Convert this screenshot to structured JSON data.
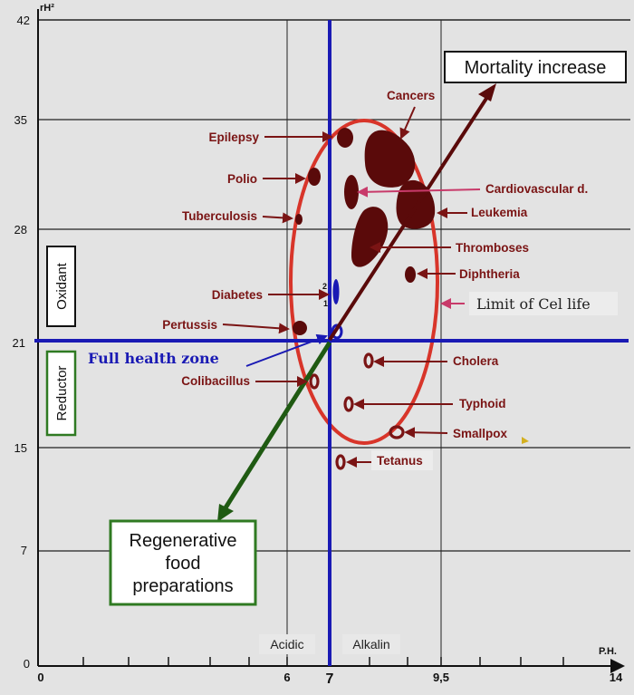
{
  "y_axis": {
    "label": "rH²",
    "ticks": [
      {
        "value": 0,
        "label": "0"
      },
      {
        "value": 7,
        "label": "7"
      },
      {
        "value": 15,
        "label": "15"
      },
      {
        "value": 21,
        "label": "21"
      },
      {
        "value": 28,
        "label": "28"
      },
      {
        "value": 35,
        "label": "35"
      },
      {
        "value": 42,
        "label": "42"
      }
    ]
  },
  "x_axis": {
    "label": "P.H.",
    "ticks": [
      {
        "value": 0,
        "label": "0"
      },
      {
        "value": 6,
        "label": "6"
      },
      {
        "value": 7,
        "label": "7"
      },
      {
        "value": 9.5,
        "label": "9,5"
      },
      {
        "value": 14,
        "label": "14"
      }
    ]
  },
  "regions": {
    "acidic": "Acidic",
    "alkalin": "Alkalin",
    "oxidant": "Oxidant",
    "reductor": "Reductor"
  },
  "callouts": {
    "mortality": "Mortality increase",
    "regenerative_line1": "Regenerative",
    "regenerative_line2": "food",
    "regenerative_line3": "preparations",
    "full_health": "Full health zone",
    "limit": "Limit of Cel life"
  },
  "diseases_left": {
    "epilepsy": "Epilepsy",
    "polio": "Polio",
    "tuberculosis": "Tuberculosis",
    "diabetes": "Diabetes",
    "pertussis": "Pertussis",
    "colibacillus": "Colibacillus"
  },
  "diseases_right": {
    "cancers": "Cancers",
    "cardiovascular": "Cardiovascular d.",
    "leukemia": "Leukemia",
    "thromboses": "Thromboses",
    "diphtheria": "Diphtheria",
    "cholera": "Cholera",
    "typhoid": "Typhoid",
    "smallpox": "Smallpox",
    "tetanus": "Tetanus"
  },
  "diabetes_markers": {
    "upper": "2",
    "lower": "1"
  },
  "colors": {
    "disease_text": "#7a1414",
    "blob": "#5a0a0a",
    "ellipse": "#d8352a",
    "blue": "#1a1ab4",
    "mortality_arrow": "#5a0a0a",
    "regen_arrow": "#1f5a12",
    "regen_border": "#2f7a22"
  }
}
